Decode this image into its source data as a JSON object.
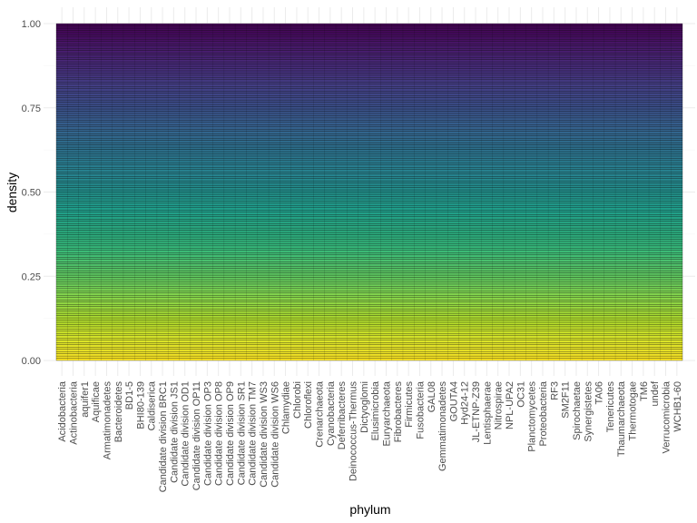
{
  "chart_data": {
    "type": "bar",
    "stacked": true,
    "position": "fill",
    "xlabel": "phylum",
    "ylabel": "density",
    "ylim": [
      0,
      1
    ],
    "yticks": [
      0.0,
      0.25,
      0.5,
      0.75,
      1.0
    ],
    "ytick_labels": [
      "0.00",
      "0.25",
      "0.50",
      "0.75",
      "1.00"
    ],
    "grid": true,
    "colormap": "viridis",
    "band_count": 150,
    "categories": [
      "Acidobacteria",
      "Actinobacteria",
      "aquifer1",
      "Aquificae",
      "Armatimonadetes",
      "Bacteroidetes",
      "BD1-5",
      "BHI80-139",
      "Caldiserica",
      "Candidate division BRC1",
      "Candidate division JS1",
      "Candidate division OD1",
      "Candidate division OP11",
      "Candidate division OP3",
      "Candidate division OP8",
      "Candidate division OP9",
      "Candidate division SR1",
      "Candidate division TM7",
      "Candidate division WS3",
      "Candidate division WS6",
      "Chlamydiae",
      "Chlorobi",
      "Chloroflexi",
      "Crenarchaeota",
      "Cyanobacteria",
      "Deferribacteres",
      "Deinococcus-Thermus",
      "Dictyoglomi",
      "Elusimicrobia",
      "Euryarchaeota",
      "Fibrobacteres",
      "Firmicutes",
      "Fusobacteria",
      "GAL08",
      "Gemmatimonadetes",
      "GOUTA4",
      "Hyd24-12",
      "JL-ETNP-Z39",
      "Lentisphaerae",
      "Nitrospirae",
      "NPL-UPA2",
      "OC31",
      "Planctomycetes",
      "Proteobacteria",
      "RF3",
      "SM2F11",
      "Spirochaetae",
      "Synergistetes",
      "TA06",
      "Tenericutes",
      "Thaumarchaeota",
      "Thermotogae",
      "TM6",
      "undef",
      "Verrucomicrobia",
      "WCHB1-60"
    ],
    "values": [
      1,
      1,
      1,
      1,
      1,
      1,
      1,
      1,
      1,
      1,
      1,
      1,
      1,
      1,
      1,
      1,
      1,
      1,
      1,
      1,
      1,
      1,
      1,
      1,
      1,
      1,
      1,
      1,
      1,
      1,
      1,
      1,
      1,
      1,
      1,
      1,
      1,
      1,
      1,
      1,
      1,
      1,
      1,
      1,
      1,
      1,
      1,
      1,
      1,
      1,
      1,
      1,
      1,
      1,
      1,
      1
    ],
    "colors": {
      "band_top": "#440154",
      "band_bottom": "#fde725",
      "band_edge": "#000000",
      "grid_major": "#ebebeb",
      "grid_minor": "#f5f5f5"
    }
  }
}
